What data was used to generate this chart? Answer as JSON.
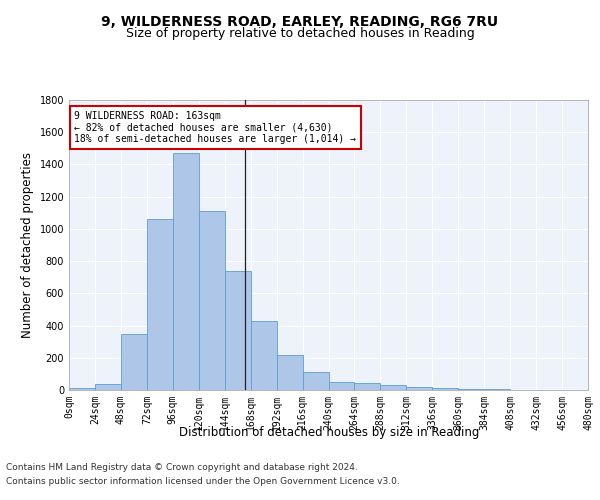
{
  "title1": "9, WILDERNESS ROAD, EARLEY, READING, RG6 7RU",
  "title2": "Size of property relative to detached houses in Reading",
  "xlabel": "Distribution of detached houses by size in Reading",
  "ylabel": "Number of detached properties",
  "bin_edges": [
    0,
    24,
    48,
    72,
    96,
    120,
    144,
    168,
    192,
    216,
    240,
    264,
    288,
    312,
    336,
    360,
    384,
    408,
    432,
    456,
    480
  ],
  "bar_heights": [
    10,
    35,
    350,
    1060,
    1470,
    1110,
    740,
    430,
    220,
    110,
    50,
    45,
    30,
    20,
    15,
    5,
    5,
    3,
    2,
    1
  ],
  "bar_color": "#aec6e8",
  "bar_edge_color": "#5a9fd4",
  "property_line_x": 163,
  "annotation_text": "9 WILDERNESS ROAD: 163sqm\n← 82% of detached houses are smaller (4,630)\n18% of semi-detached houses are larger (1,014) →",
  "annotation_box_color": "#ffffff",
  "annotation_box_edge": "#cc0000",
  "ylim": [
    0,
    1800
  ],
  "yticks": [
    0,
    200,
    400,
    600,
    800,
    1000,
    1200,
    1400,
    1600,
    1800
  ],
  "xtick_labels": [
    "0sqm",
    "24sqm",
    "48sqm",
    "72sqm",
    "96sqm",
    "120sqm",
    "144sqm",
    "168sqm",
    "192sqm",
    "216sqm",
    "240sqm",
    "264sqm",
    "288sqm",
    "312sqm",
    "336sqm",
    "360sqm",
    "384sqm",
    "408sqm",
    "432sqm",
    "456sqm",
    "480sqm"
  ],
  "footer1": "Contains HM Land Registry data © Crown copyright and database right 2024.",
  "footer2": "Contains public sector information licensed under the Open Government Licence v3.0.",
  "bg_color": "#eef2fb",
  "grid_color": "#ffffff",
  "title1_fontsize": 10,
  "title2_fontsize": 9,
  "axis_label_fontsize": 8.5,
  "tick_fontsize": 7,
  "footer_fontsize": 6.5
}
